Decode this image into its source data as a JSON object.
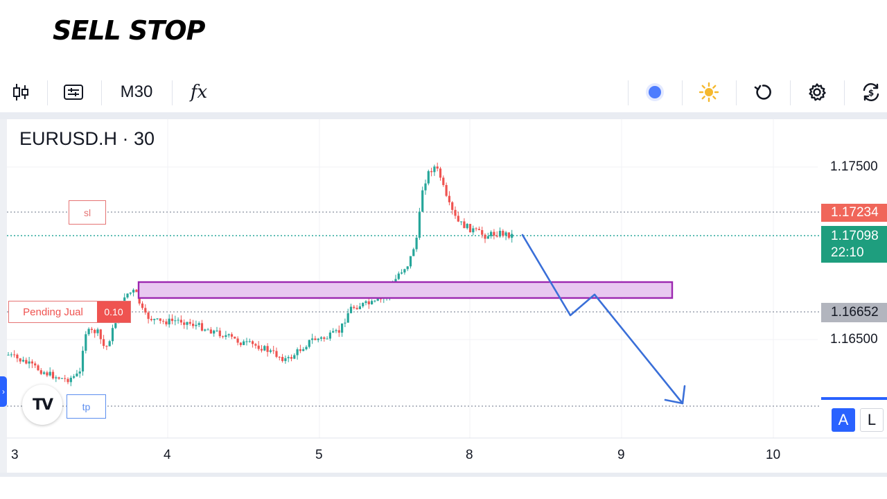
{
  "headline": "SELL STOP",
  "toolbar": {
    "timeframe": "M30",
    "indicator_label": "fx"
  },
  "chart": {
    "symbol_title": "EURUSD.H · 30",
    "y_labels": {
      "p1": "1.17500",
      "p2": "1.16500"
    },
    "tags": {
      "sl_price": "1.17234",
      "current_price": "1.17098",
      "countdown": "22:10",
      "entry_price": "1.16652"
    },
    "orders": {
      "sl_label": "sl",
      "tp_label": "tp",
      "pending_label": "Pending Jual",
      "pending_qty": "0.10"
    },
    "x_labels": [
      "3",
      "4",
      "5",
      "8",
      "9",
      "10"
    ],
    "logo_text": "TV",
    "scale_auto": "A",
    "scale_log": "L",
    "colors": {
      "up": "#26a69a",
      "down": "#ef5350",
      "zone_fill": "#e8c8f0",
      "zone_border": "#9c27b0",
      "arrow": "#3a6fd8",
      "sl_tag": "#f0665a",
      "current_tag": "#1e9e7e",
      "entry_tag": "#b2b5be"
    }
  }
}
